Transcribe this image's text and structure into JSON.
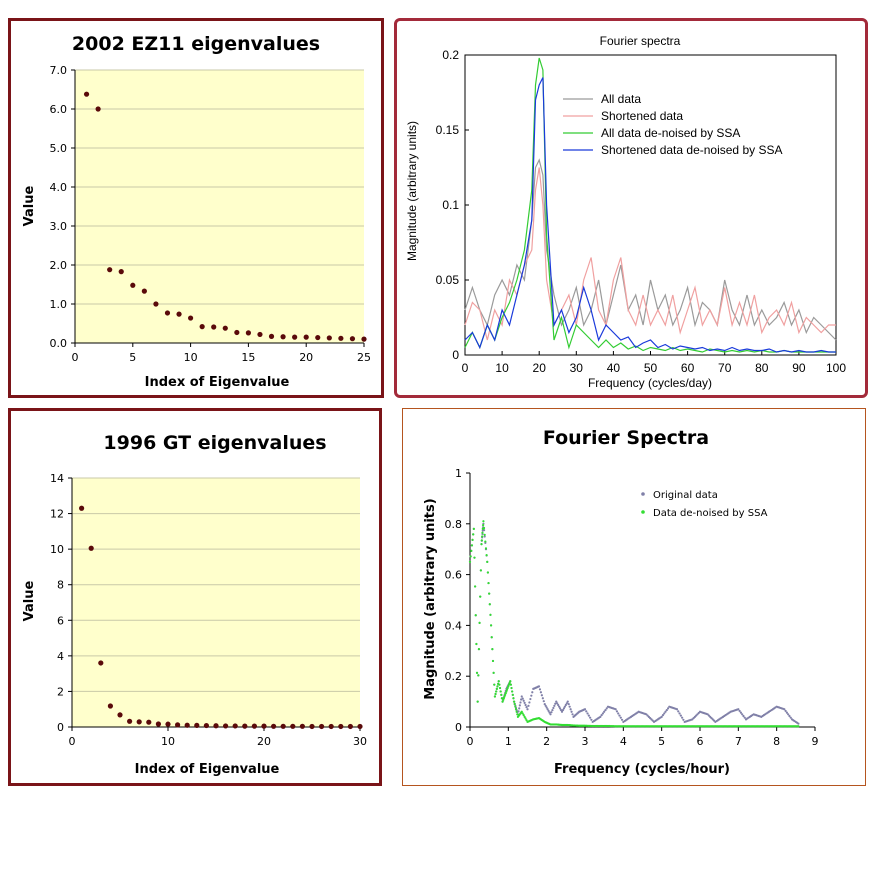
{
  "chart_data": [
    {
      "type": "scatter",
      "title": "2002 EZ11 eigenvalues",
      "xlabel": "Index of Eigenvalue",
      "ylabel": "Value",
      "xlim": [
        0,
        25
      ],
      "ylim": [
        0,
        7
      ],
      "xticks": [
        "0",
        "5",
        "10",
        "15",
        "20",
        "25"
      ],
      "yticks": [
        "0.0",
        "1.0",
        "2.0",
        "3.0",
        "4.0",
        "5.0",
        "6.0",
        "7.0"
      ],
      "marker_color": "#5a0a0a",
      "plot_background": "#ffffcc",
      "grid": true,
      "x": [
        1,
        2,
        3,
        4,
        5,
        6,
        7,
        8,
        9,
        10,
        11,
        12,
        13,
        14,
        15,
        16,
        17,
        18,
        19,
        20,
        21,
        22,
        23,
        24,
        25
      ],
      "y": [
        6.38,
        6.0,
        1.88,
        1.83,
        1.48,
        1.33,
        1.0,
        0.77,
        0.74,
        0.64,
        0.42,
        0.41,
        0.38,
        0.27,
        0.26,
        0.22,
        0.17,
        0.16,
        0.15,
        0.15,
        0.14,
        0.13,
        0.12,
        0.11,
        0.1
      ]
    },
    {
      "type": "line",
      "title": "Fourier spectra",
      "xlabel": "Frequency (cycles/day)",
      "ylabel": "Magnitude (arbitrary units)",
      "xlim": [
        0,
        100
      ],
      "ylim": [
        0,
        0.2
      ],
      "xticks": [
        "0",
        "10",
        "20",
        "30",
        "40",
        "50",
        "60",
        "70",
        "80",
        "90",
        "100"
      ],
      "yticks": [
        "0",
        "0.05",
        "0.1",
        "0.15",
        "0.2"
      ],
      "legend_position": "top-right",
      "x": [
        0,
        2,
        4,
        6,
        8,
        10,
        12,
        14,
        16,
        18,
        19,
        20,
        21,
        22,
        24,
        26,
        28,
        30,
        32,
        34,
        36,
        38,
        40,
        42,
        44,
        46,
        48,
        50,
        52,
        54,
        56,
        58,
        60,
        62,
        64,
        66,
        68,
        70,
        72,
        74,
        76,
        78,
        80,
        82,
        84,
        86,
        88,
        90,
        92,
        94,
        96,
        98,
        100
      ],
      "series": [
        {
          "name": "All data",
          "color": "#9a9a9a",
          "values": [
            0.03,
            0.045,
            0.03,
            0.02,
            0.04,
            0.05,
            0.04,
            0.06,
            0.05,
            0.09,
            0.125,
            0.13,
            0.12,
            0.07,
            0.04,
            0.02,
            0.03,
            0.045,
            0.02,
            0.03,
            0.05,
            0.02,
            0.04,
            0.06,
            0.03,
            0.04,
            0.02,
            0.05,
            0.03,
            0.04,
            0.02,
            0.03,
            0.045,
            0.02,
            0.035,
            0.03,
            0.02,
            0.05,
            0.03,
            0.02,
            0.04,
            0.02,
            0.03,
            0.02,
            0.025,
            0.035,
            0.02,
            0.03,
            0.015,
            0.025,
            0.02,
            0.015,
            0.01
          ]
        },
        {
          "name": "Shortened data",
          "color": "#f0a0a0",
          "values": [
            0.02,
            0.035,
            0.03,
            0.01,
            0.03,
            0.02,
            0.05,
            0.04,
            0.06,
            0.07,
            0.11,
            0.125,
            0.1,
            0.05,
            0.02,
            0.03,
            0.04,
            0.02,
            0.05,
            0.065,
            0.03,
            0.02,
            0.05,
            0.065,
            0.03,
            0.02,
            0.04,
            0.02,
            0.03,
            0.02,
            0.04,
            0.015,
            0.03,
            0.045,
            0.02,
            0.03,
            0.02,
            0.045,
            0.02,
            0.035,
            0.02,
            0.04,
            0.015,
            0.025,
            0.03,
            0.02,
            0.035,
            0.015,
            0.025,
            0.02,
            0.015,
            0.02,
            0.02
          ]
        },
        {
          "name": "All data de-noised by SSA",
          "color": "#33cc33",
          "values": [
            0.005,
            0.015,
            0.005,
            0.02,
            0.01,
            0.025,
            0.035,
            0.05,
            0.07,
            0.11,
            0.18,
            0.198,
            0.19,
            0.08,
            0.01,
            0.025,
            0.005,
            0.02,
            0.015,
            0.01,
            0.005,
            0.01,
            0.005,
            0.008,
            0.004,
            0.006,
            0.003,
            0.005,
            0.004,
            0.003,
            0.005,
            0.003,
            0.004,
            0.003,
            0.002,
            0.004,
            0.003,
            0.002,
            0.003,
            0.002,
            0.003,
            0.002,
            0.003,
            0.002,
            0.002,
            0.003,
            0.002,
            0.002,
            0.002,
            0.002,
            0.002,
            0.002,
            0.002
          ]
        },
        {
          "name": "Shortened data de-noised by SSA",
          "color": "#1a3adb",
          "values": [
            0.01,
            0.015,
            0.005,
            0.02,
            0.01,
            0.03,
            0.02,
            0.04,
            0.06,
            0.09,
            0.17,
            0.18,
            0.185,
            0.1,
            0.02,
            0.03,
            0.015,
            0.025,
            0.045,
            0.03,
            0.01,
            0.02,
            0.015,
            0.01,
            0.012,
            0.005,
            0.008,
            0.01,
            0.005,
            0.007,
            0.004,
            0.006,
            0.005,
            0.004,
            0.005,
            0.003,
            0.004,
            0.003,
            0.005,
            0.003,
            0.004,
            0.003,
            0.003,
            0.004,
            0.002,
            0.003,
            0.002,
            0.003,
            0.002,
            0.002,
            0.003,
            0.002,
            0.002
          ]
        }
      ]
    },
    {
      "type": "scatter",
      "title": "1996 GT eigenvalues",
      "xlabel": "Index of Eigenvalue",
      "ylabel": "Value",
      "xlim": [
        0,
        30
      ],
      "ylim": [
        0,
        14
      ],
      "xticks": [
        "0",
        "10",
        "20",
        "30"
      ],
      "yticks": [
        "0",
        "2",
        "4",
        "6",
        "8",
        "10",
        "12",
        "14"
      ],
      "marker_color": "#5a0a0a",
      "plot_background": "#ffffcc",
      "grid": true,
      "x": [
        1,
        2,
        3,
        4,
        5,
        6,
        7,
        8,
        9,
        10,
        11,
        12,
        13,
        14,
        15,
        16,
        17,
        18,
        19,
        20,
        21,
        22,
        23,
        24,
        25,
        26,
        27,
        28,
        29,
        30
      ],
      "y": [
        12.3,
        10.05,
        3.6,
        1.18,
        0.68,
        0.32,
        0.29,
        0.27,
        0.17,
        0.16,
        0.12,
        0.1,
        0.09,
        0.08,
        0.07,
        0.06,
        0.06,
        0.05,
        0.05,
        0.05,
        0.04,
        0.04,
        0.04,
        0.04,
        0.03,
        0.03,
        0.03,
        0.03,
        0.03,
        0.03
      ]
    },
    {
      "type": "line",
      "title": "Fourier Spectra",
      "xlabel": "Frequency (cycles/hour)",
      "ylabel": "Magnitude (arbitrary units)",
      "xlim": [
        0,
        9
      ],
      "ylim": [
        0,
        1
      ],
      "xticks": [
        "0",
        "1",
        "2",
        "3",
        "4",
        "5",
        "6",
        "7",
        "8",
        "9"
      ],
      "yticks": [
        "0",
        "0.2",
        "0.4",
        "0.6",
        "0.8",
        "1"
      ],
      "legend_position": "top-right",
      "series": [
        {
          "name": "Original data",
          "color": "#8080a8",
          "x": [
            0,
            0.1,
            0.2,
            0.3,
            0.35,
            0.45,
            0.55,
            0.65,
            0.75,
            0.85,
            0.95,
            1.05,
            1.15,
            1.25,
            1.35,
            1.5,
            1.65,
            1.8,
            1.95,
            2.1,
            2.25,
            2.4,
            2.55,
            2.7,
            2.85,
            3.0,
            3.2,
            3.4,
            3.6,
            3.8,
            4.0,
            4.2,
            4.4,
            4.6,
            4.8,
            5.0,
            5.2,
            5.4,
            5.6,
            5.8,
            6.0,
            6.2,
            6.4,
            6.6,
            6.8,
            7.0,
            7.2,
            7.4,
            7.6,
            7.8,
            8.0,
            8.2,
            8.4,
            8.6
          ],
          "y": [
            0.65,
            0.78,
            0.1,
            0.72,
            0.8,
            0.65,
            0.4,
            0.12,
            0.18,
            0.1,
            0.15,
            0.18,
            0.1,
            0.05,
            0.12,
            0.07,
            0.15,
            0.16,
            0.09,
            0.05,
            0.1,
            0.06,
            0.1,
            0.04,
            0.06,
            0.07,
            0.02,
            0.04,
            0.08,
            0.07,
            0.02,
            0.04,
            0.06,
            0.05,
            0.02,
            0.04,
            0.08,
            0.07,
            0.02,
            0.03,
            0.06,
            0.05,
            0.02,
            0.04,
            0.06,
            0.07,
            0.03,
            0.05,
            0.04,
            0.06,
            0.08,
            0.07,
            0.03,
            0.01
          ]
        },
        {
          "name": "Data de-noised by SSA",
          "color": "#33dd33",
          "x": [
            0,
            0.1,
            0.2,
            0.3,
            0.35,
            0.45,
            0.55,
            0.65,
            0.75,
            0.85,
            0.95,
            1.05,
            1.15,
            1.25,
            1.35,
            1.5,
            1.65,
            1.8,
            1.95,
            2.1,
            2.25,
            2.4,
            2.55,
            2.7,
            2.85,
            3.0,
            3.2,
            3.4,
            3.6,
            3.8,
            4.0,
            4.2,
            4.4,
            4.6,
            4.8,
            5.0,
            5.2,
            5.4,
            5.6,
            5.8,
            6.0,
            6.2,
            6.4,
            6.6,
            6.8,
            7.0,
            7.2,
            7.4,
            7.6,
            7.8,
            8.0,
            8.2,
            8.4,
            8.6
          ],
          "y": [
            0.65,
            0.78,
            0.1,
            0.72,
            0.81,
            0.65,
            0.4,
            0.12,
            0.18,
            0.1,
            0.14,
            0.18,
            0.1,
            0.04,
            0.06,
            0.02,
            0.03,
            0.035,
            0.02,
            0.01,
            0.01,
            0.008,
            0.008,
            0.006,
            0.005,
            0.005,
            0.004,
            0.004,
            0.004,
            0.003,
            0.003,
            0.003,
            0.003,
            0.003,
            0.003,
            0.003,
            0.003,
            0.003,
            0.003,
            0.003,
            0.003,
            0.003,
            0.003,
            0.003,
            0.003,
            0.003,
            0.003,
            0.003,
            0.003,
            0.003,
            0.003,
            0.003,
            0.003,
            0.003
          ]
        }
      ]
    }
  ]
}
